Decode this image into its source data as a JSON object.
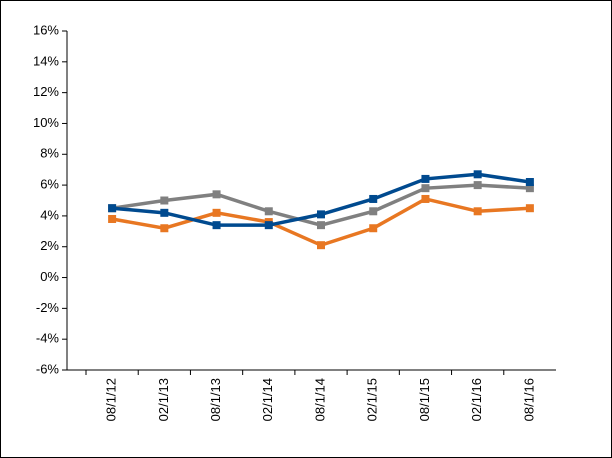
{
  "chart_data": {
    "type": "line",
    "categories": [
      "08/1/12",
      "02/1/13",
      "08/1/13",
      "02/1/14",
      "08/1/14",
      "02/1/15",
      "08/1/15",
      "02/1/16",
      "08/1/16"
    ],
    "series": [
      {
        "color": "#808080",
        "values": [
          4.5,
          5.0,
          5.4,
          4.3,
          3.4,
          4.3,
          5.8,
          6.0,
          5.8
        ]
      },
      {
        "color": "#e87722",
        "values": [
          3.8,
          3.2,
          4.2,
          3.6,
          2.1,
          3.2,
          5.1,
          4.3,
          4.5
        ]
      },
      {
        "color": "#004a8f",
        "values": [
          4.5,
          4.2,
          3.4,
          3.4,
          4.1,
          5.1,
          6.4,
          6.7,
          6.2
        ]
      }
    ],
    "ylim": [
      -6,
      16
    ],
    "yticks": [
      {
        "value": -6,
        "label": "-6%"
      },
      {
        "value": -4,
        "label": "-4%"
      },
      {
        "value": -2,
        "label": "-2%"
      },
      {
        "value": 0,
        "label": "0%"
      },
      {
        "value": 2,
        "label": "2%"
      },
      {
        "value": 4,
        "label": "4%"
      },
      {
        "value": 6,
        "label": "6%"
      },
      {
        "value": 8,
        "label": "8%"
      },
      {
        "value": 10,
        "label": "10%"
      },
      {
        "value": 12,
        "label": "12%"
      },
      {
        "value": 14,
        "label": "14%"
      },
      {
        "value": 16,
        "label": "16%"
      }
    ]
  }
}
